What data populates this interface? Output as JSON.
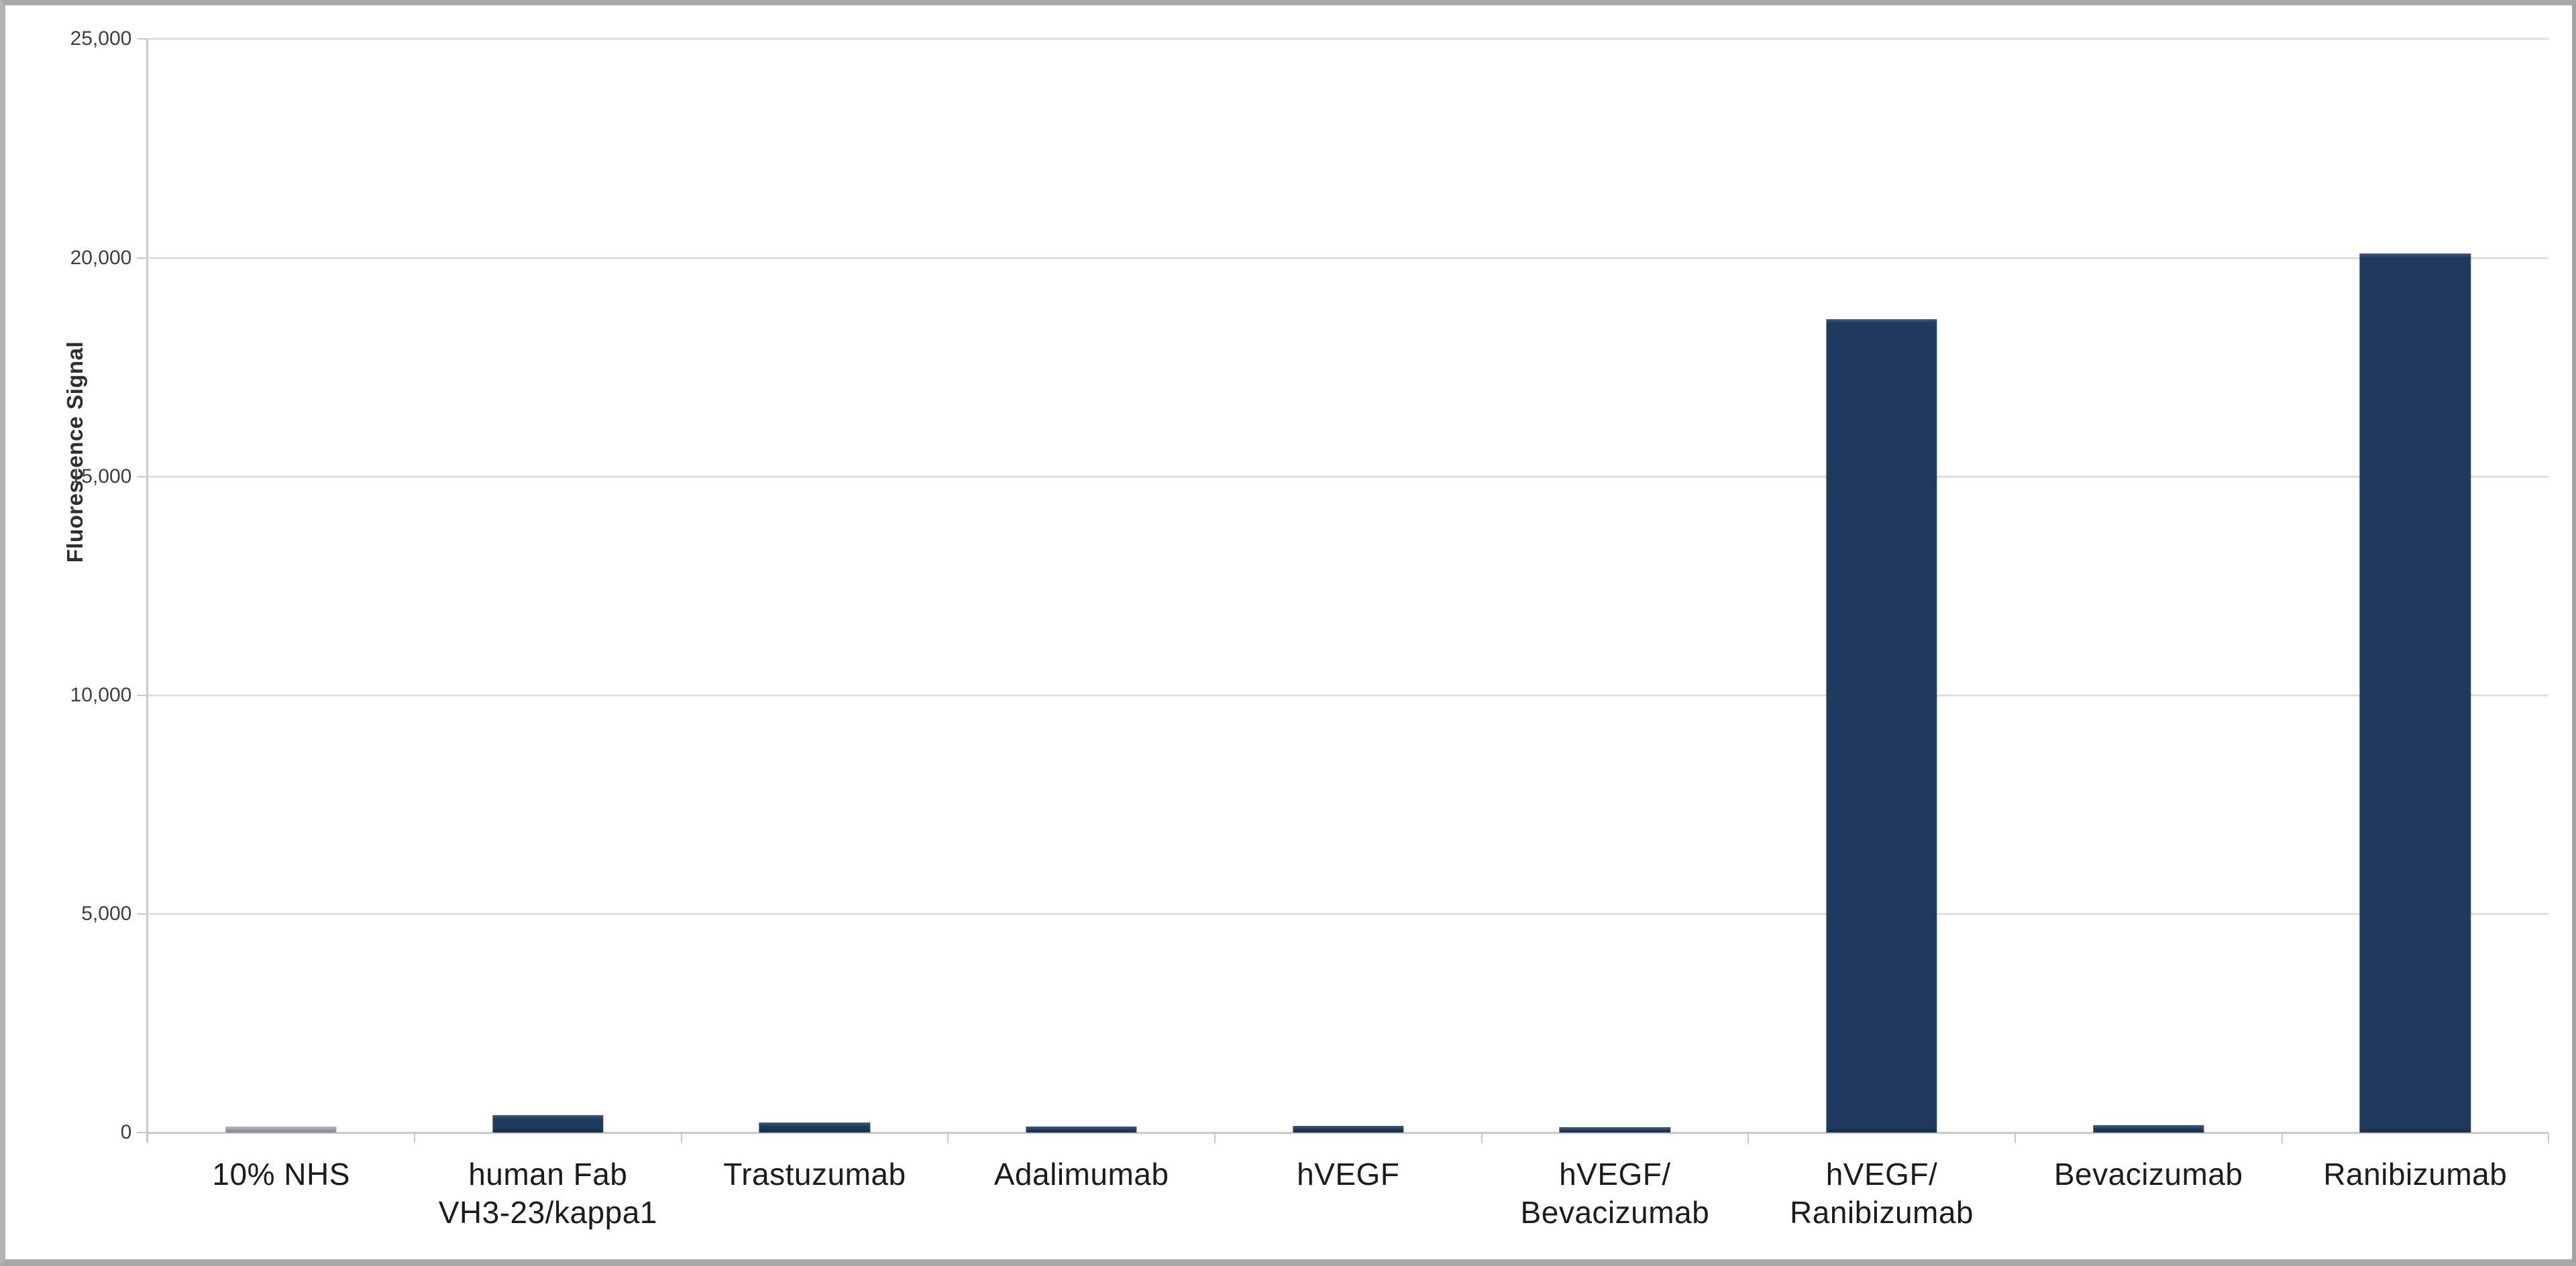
{
  "figure": {
    "background": "#ffffff",
    "frame_color": "#a8a8a8"
  },
  "chart_data": {
    "type": "bar",
    "title": "",
    "xlabel": "",
    "ylabel": "Fluorescence Signal",
    "ylim": [
      0,
      25000
    ],
    "grid": true,
    "legend": false,
    "ytick_values": [
      0,
      5000,
      10000,
      15000,
      20000,
      25000
    ],
    "ytick_labels": [
      "0",
      "5,000",
      "10,000",
      "15,000",
      "20,000",
      "25,000"
    ],
    "categories": [
      "10% NHS",
      "human Fab\nVH3-23/kappa1",
      "Trastuzumab",
      "Adalimumab",
      "hVEGF",
      "hVEGF/\nBevacizumab",
      "hVEGF/\nRanibizumab",
      "Bevacizumab",
      "Ranibizumab"
    ],
    "values": [
      140,
      400,
      230,
      140,
      150,
      120,
      18600,
      160,
      20100
    ],
    "bar_colors": [
      "#a7abb2",
      "#1f3a5e",
      "#1f3a5e",
      "#1f3a5e",
      "#1f3a5e",
      "#1f3a5e",
      "#1f3a5e",
      "#1f3a5e",
      "#1f3a5e"
    ],
    "colors": {
      "bar_navy": "#1f3a5e",
      "bar_gray_control": "#a7abb2",
      "gridline": "#dcdcdc",
      "axis": "#c9c9c9",
      "tick_label": "#3f3f3f",
      "category_label": "#1c1c1c"
    }
  }
}
